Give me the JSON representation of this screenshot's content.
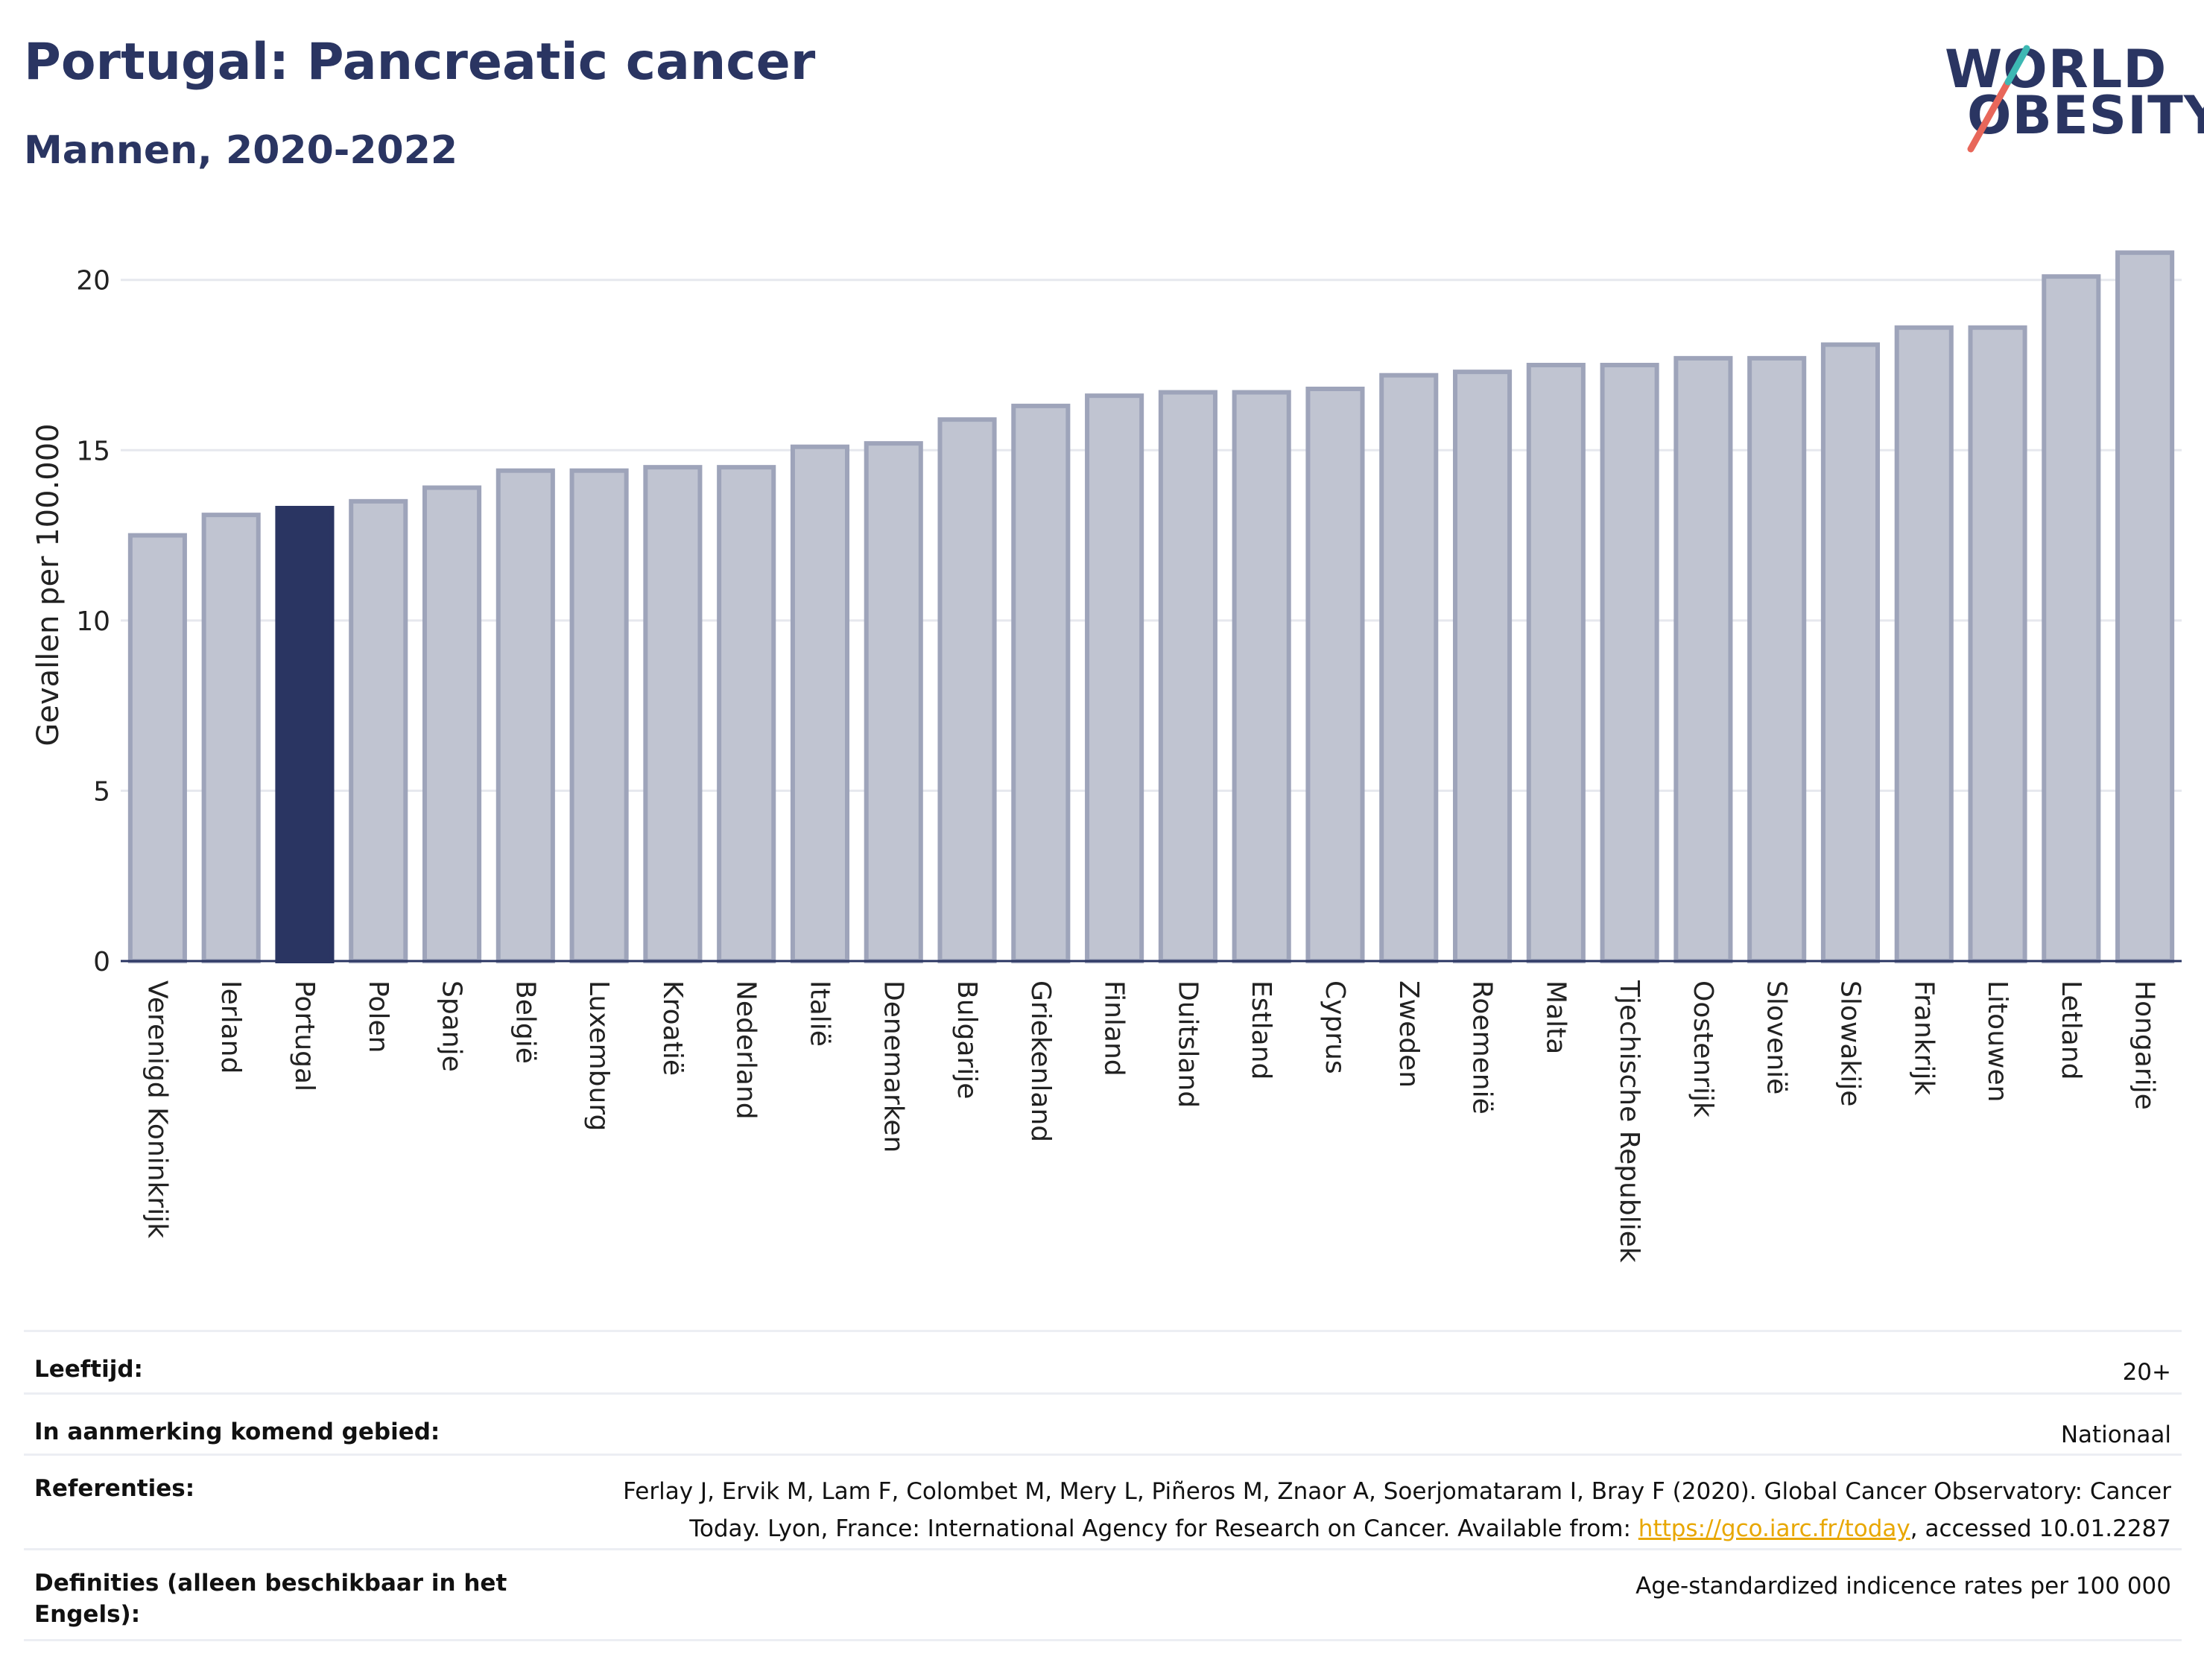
{
  "header": {
    "title": "Portugal: Pancreatic cancer",
    "subtitle": "Mannen, 2020-2022"
  },
  "logo": {
    "line1": "WORLD",
    "line2": "OBESITY",
    "slash_color": "#e8675a",
    "accent_color": "#3db8b3"
  },
  "colors": {
    "bar_fill": "#c0c4d1",
    "bar_stroke": "#9ea4ba",
    "highlight_fill": "#2a3562",
    "gridline": "#e6e8ee",
    "text": "#2a3562"
  },
  "chart_data": {
    "type": "bar",
    "ylabel": "Gevallen per 100.000",
    "ylim": [
      0,
      21
    ],
    "yticks": [
      0,
      5,
      10,
      15,
      20
    ],
    "grid": true,
    "highlight": "Portugal",
    "categories": [
      "Verenigd Koninkrijk",
      "Ierland",
      "Portugal",
      "Polen",
      "Spanje",
      "België",
      "Luxemburg",
      "Kroatië",
      "Nederland",
      "Italië",
      "Denemarken",
      "Bulgarije",
      "Griekenland",
      "Finland",
      "Duitsland",
      "Estland",
      "Cyprus",
      "Zweden",
      "Roemenië",
      "Malta",
      "Tjechische Republiek",
      "Oostenrijk",
      "Slovenië",
      "Slowakije",
      "Frankrijk",
      "Litouwen",
      "Letland",
      "Hongarije"
    ],
    "values": [
      12.5,
      13.1,
      13.3,
      13.5,
      13.9,
      14.4,
      14.4,
      14.5,
      14.5,
      15.1,
      15.2,
      15.9,
      16.3,
      16.6,
      16.7,
      16.7,
      16.8,
      17.2,
      17.3,
      17.5,
      17.5,
      17.7,
      17.7,
      18.1,
      18.6,
      18.6,
      20.1,
      20.8
    ]
  },
  "info": {
    "age_label": "Leeftijd:",
    "age_value": "20+",
    "area_label": "In aanmerking komend gebied:",
    "area_value": "Nationaal",
    "references_label": "Referenties:",
    "references_text_1": "Ferlay J, Ervik M, Lam F, Colombet M, Mery L, Piñeros M, Znaor A, Soerjomataram I, Bray F (2020). Global Cancer Observatory: Cancer Today. Lyon, France: International Agency for Research on Cancer. Available from: ",
    "references_link": "https://gco.iarc.fr/today",
    "references_text_2": ", accessed 10.01.2287",
    "definitions_label": "Definities (alleen beschikbaar in het Engels):",
    "definitions_value": "Age-standardized indicence rates per 100 000"
  }
}
